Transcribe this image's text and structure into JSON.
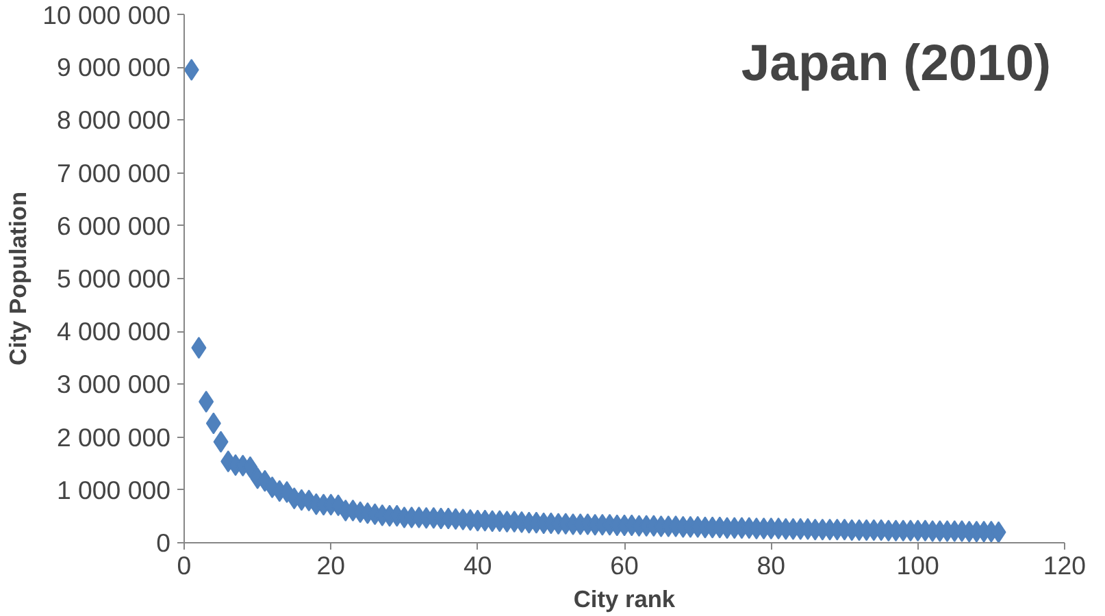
{
  "chart_data": {
    "type": "scatter",
    "title": "Japan (2010)",
    "xlabel": "City rank",
    "ylabel": "City Population",
    "x": [
      1,
      2,
      3,
      4,
      5,
      6,
      7,
      8,
      9,
      10,
      11,
      12,
      13,
      14,
      15,
      16,
      17,
      18,
      19,
      20,
      21,
      22,
      23,
      24,
      25,
      26,
      27,
      28,
      29,
      30,
      31,
      32,
      33,
      34,
      35,
      36,
      37,
      38,
      39,
      40,
      41,
      42,
      43,
      44,
      45,
      46,
      47,
      48,
      49,
      50,
      51,
      52,
      53,
      54,
      55,
      56,
      57,
      58,
      59,
      60,
      61,
      62,
      63,
      64,
      65,
      66,
      67,
      68,
      69,
      70,
      71,
      72,
      73,
      74,
      75,
      76,
      77,
      78,
      79,
      80,
      81,
      82,
      83,
      84,
      85,
      86,
      87,
      88,
      89,
      90,
      91,
      92,
      93,
      94,
      95,
      96,
      97,
      98,
      99,
      100,
      101,
      102,
      103,
      104,
      105,
      106,
      107,
      108,
      109,
      110,
      111
    ],
    "series": [
      {
        "color": "#4f81bd",
        "values": [
          8950000,
          3690000,
          2670000,
          2260000,
          1910000,
          1540000,
          1470000,
          1460000,
          1430000,
          1220000,
          1170000,
          1050000,
          980000,
          960000,
          840000,
          810000,
          800000,
          730000,
          720000,
          720000,
          710000,
          610000,
          610000,
          580000,
          560000,
          540000,
          520000,
          510000,
          510000,
          480000,
          480000,
          480000,
          470000,
          470000,
          460000,
          460000,
          450000,
          440000,
          430000,
          420000,
          420000,
          410000,
          410000,
          400000,
          400000,
          390000,
          380000,
          380000,
          370000,
          370000,
          360000,
          360000,
          350000,
          350000,
          350000,
          340000,
          340000,
          340000,
          330000,
          330000,
          330000,
          320000,
          320000,
          320000,
          310000,
          310000,
          310000,
          300000,
          300000,
          300000,
          290000,
          290000,
          290000,
          280000,
          280000,
          280000,
          280000,
          270000,
          270000,
          270000,
          270000,
          260000,
          260000,
          260000,
          260000,
          250000,
          250000,
          250000,
          250000,
          250000,
          240000,
          240000,
          240000,
          240000,
          240000,
          230000,
          230000,
          230000,
          230000,
          230000,
          230000,
          220000,
          220000,
          220000,
          220000,
          220000,
          210000,
          210000,
          210000,
          210000,
          200000
        ]
      }
    ],
    "marker": "diamond",
    "grid": false,
    "xlim": [
      0,
      120
    ],
    "xticks": [
      0,
      20,
      40,
      60,
      80,
      100,
      120
    ],
    "ylim": [
      0,
      10000000
    ],
    "yticks": [
      0,
      {
        "value": 1000000,
        "label": "1 000 000"
      },
      {
        "value": 2000000,
        "label": "2 000 000"
      },
      {
        "value": 3000000,
        "label": "3 000 000"
      },
      {
        "value": 4000000,
        "label": "4 000 000"
      },
      {
        "value": 5000000,
        "label": "5 000 000"
      },
      {
        "value": 6000000,
        "label": "6 000 000"
      },
      {
        "value": 7000000,
        "label": "7 000 000"
      },
      {
        "value": 8000000,
        "label": "8 000 000"
      },
      {
        "value": 9000000,
        "label": "9 000 000"
      },
      {
        "value": 10000000,
        "label": "10 000 000"
      }
    ]
  }
}
